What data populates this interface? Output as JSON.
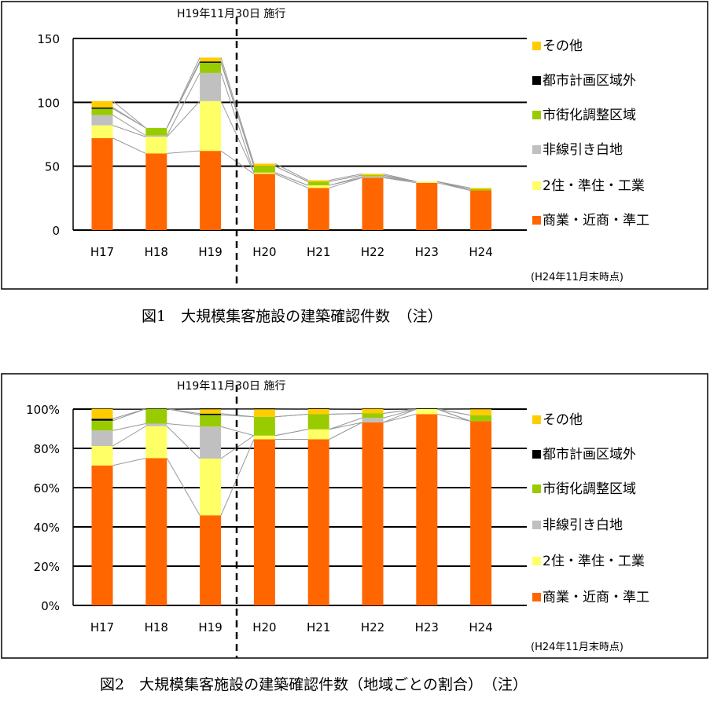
{
  "colors": {
    "商業・近商・準工": "#FF6600",
    "2住・準住・工業": "#FFFF66",
    "非線引き白地": "#C0C0C0",
    "市街化調整区域": "#99CC00",
    "都市計画区域外": "#000000",
    "その他": "#FFCC00",
    "connector": "#999999"
  },
  "chart_data": [
    {
      "type": "bar",
      "stacked": true,
      "title": "図1　大規模集客施設の建築確認件数　（注）",
      "annotation": "H19年11月30日  施行",
      "note": "(H24年11月末時点)",
      "categories": [
        "H17",
        "H18",
        "H19",
        "H20",
        "H21",
        "H22",
        "H23",
        "H24"
      ],
      "ylim": [
        0,
        150
      ],
      "yticks": [
        0,
        50,
        100,
        150
      ],
      "ytick_labels": [
        "0",
        "50",
        "100",
        "150"
      ],
      "legend_position": "right",
      "grid": true,
      "series": [
        {
          "name": "商業・近商・準工",
          "values": [
            72,
            60,
            62,
            44,
            33,
            41,
            37,
            31
          ]
        },
        {
          "name": "2住・準住・工業",
          "values": [
            10,
            13,
            39,
            1,
            2,
            0,
            1,
            0
          ]
        },
        {
          "name": "非線引き白地",
          "values": [
            8,
            1,
            22,
            0,
            0,
            1,
            0,
            0
          ]
        },
        {
          "name": "市街化調整区域",
          "values": [
            5,
            6,
            8,
            5,
            3,
            1,
            0,
            1
          ]
        },
        {
          "name": "都市計画区域外",
          "values": [
            1,
            0,
            1,
            0,
            0,
            0,
            0,
            0
          ]
        },
        {
          "name": "その他",
          "values": [
            5,
            0,
            3,
            2,
            1,
            1,
            0,
            1
          ]
        }
      ]
    },
    {
      "type": "bar",
      "stacked": true,
      "percent": true,
      "title": "図2　大規模集客施設の建築確認件数（地域ごとの割合）　（注）",
      "annotation": "H19年11月30日  施行",
      "note": "(H24年11月末時点)",
      "categories": [
        "H17",
        "H18",
        "H19",
        "H20",
        "H21",
        "H22",
        "H23",
        "H24"
      ],
      "ylim": [
        0,
        100
      ],
      "yticks": [
        0,
        20,
        40,
        60,
        80,
        100
      ],
      "ytick_labels": [
        "0%",
        "20%",
        "40%",
        "60%",
        "80%",
        "100%"
      ],
      "legend_position": "right",
      "grid": true,
      "series": [
        {
          "name": "商業・近商・準工",
          "values": [
            71.3,
            75.0,
            45.9,
            84.6,
            84.6,
            93.2,
            97.4,
            93.9
          ]
        },
        {
          "name": "2住・準住・工業",
          "values": [
            9.9,
            16.3,
            28.9,
            1.9,
            5.1,
            0,
            2.6,
            0
          ]
        },
        {
          "name": "非線引き白地",
          "values": [
            7.9,
            1.3,
            16.3,
            0,
            0,
            2.3,
            0,
            0
          ]
        },
        {
          "name": "市街化調整区域",
          "values": [
            5.0,
            7.5,
            5.9,
            9.6,
            7.7,
            2.3,
            0,
            3.0
          ]
        },
        {
          "name": "都市計画区域外",
          "values": [
            1.0,
            0,
            0.7,
            0,
            0,
            0,
            0,
            0
          ]
        },
        {
          "name": "その他",
          "values": [
            5.0,
            0,
            2.2,
            3.8,
            2.6,
            2.3,
            0,
            3.0
          ]
        }
      ]
    }
  ]
}
